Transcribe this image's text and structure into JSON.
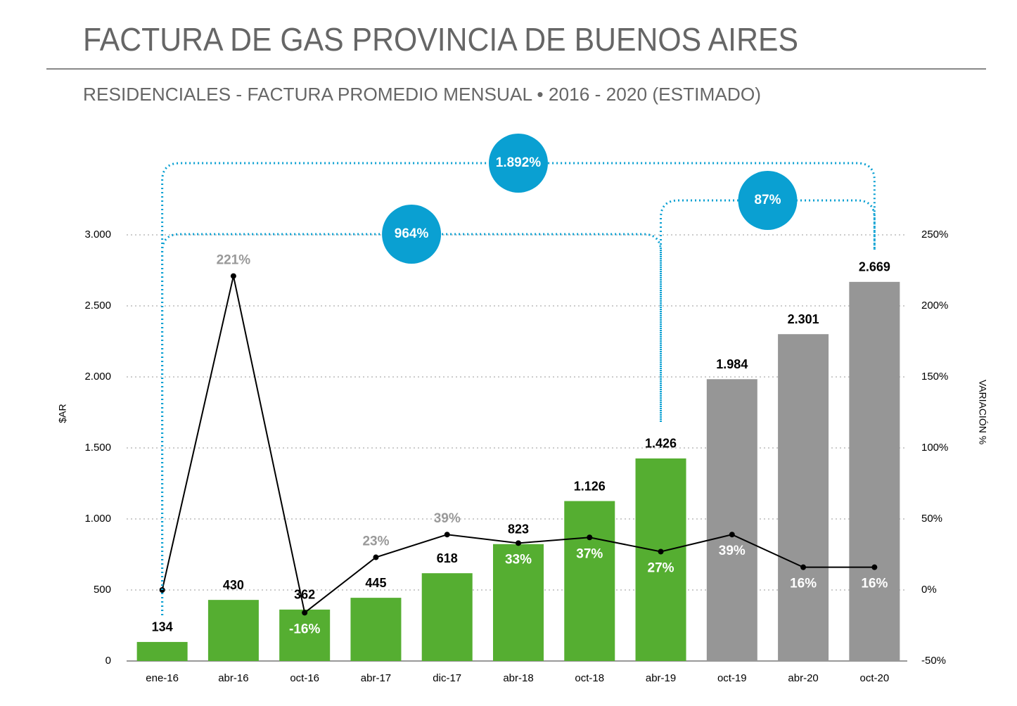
{
  "chart_data": {
    "type": "combo",
    "title": "FACTURA DE GAS PROVINCIA DE BUENOS AIRES",
    "subtitle": "RESIDENCIALES - FACTURA PROMEDIO MENSUAL • 2016 - 2020 (ESTIMADO)",
    "y_label": "$AR",
    "y2_label": "VARIACIÓN %",
    "categories": [
      "ene-16",
      "abr-16",
      "oct-16",
      "abr-17",
      "dic-17",
      "abr-18",
      "oct-18",
      "abr-19",
      "oct-19",
      "abr-20",
      "oct-20"
    ],
    "series": [
      {
        "type": "bar",
        "values": [
          134,
          430,
          362,
          445,
          618,
          823,
          1126,
          1426,
          1984,
          2301,
          2669
        ],
        "value_labels": [
          "134",
          "430",
          "362",
          "445",
          "618",
          "823",
          "1.126",
          "1.426",
          "1.984",
          "2.301",
          "2.669"
        ],
        "colors": [
          "#55ae31",
          "#55ae31",
          "#55ae31",
          "#55ae31",
          "#55ae31",
          "#55ae31",
          "#55ae31",
          "#55ae31",
          "#969696",
          "#969696",
          "#969696"
        ]
      },
      {
        "type": "line",
        "axis": "y2",
        "color": "#000000",
        "values": [
          0,
          221,
          -16,
          23,
          39,
          33,
          37,
          27,
          39,
          16,
          16
        ],
        "value_labels": [
          null,
          "221%",
          "-16%",
          "23%",
          "39%",
          "33%",
          "37%",
          "27%",
          "39%",
          "16%",
          "16%"
        ]
      }
    ],
    "ylim": [
      0,
      3000
    ],
    "yticks": [
      0,
      500,
      {
        "value": 1000,
        "label": "1.000"
      },
      {
        "value": 1500,
        "label": "1.500"
      },
      {
        "value": 2000,
        "label": "2.000"
      },
      {
        "value": 2500,
        "label": "2.500"
      },
      {
        "value": 3000,
        "label": "3.000"
      }
    ],
    "y2lim": [
      -50,
      250
    ],
    "y2ticks": [
      {
        "value": -50,
        "label": "-50%"
      },
      {
        "value": 0,
        "label": "0%"
      },
      {
        "value": 50,
        "label": "50%"
      },
      {
        "value": 100,
        "label": "100%"
      },
      {
        "value": 150,
        "label": "150%"
      },
      {
        "value": 200,
        "label": "200%"
      },
      {
        "value": 250,
        "label": "250%"
      }
    ],
    "grid": true,
    "annotations": [
      {
        "text": "1.892%",
        "color": "#0aa0d2"
      },
      {
        "text": "964%",
        "color": "#0aa0d2"
      },
      {
        "text": "87%",
        "color": "#0aa0d2"
      }
    ]
  }
}
